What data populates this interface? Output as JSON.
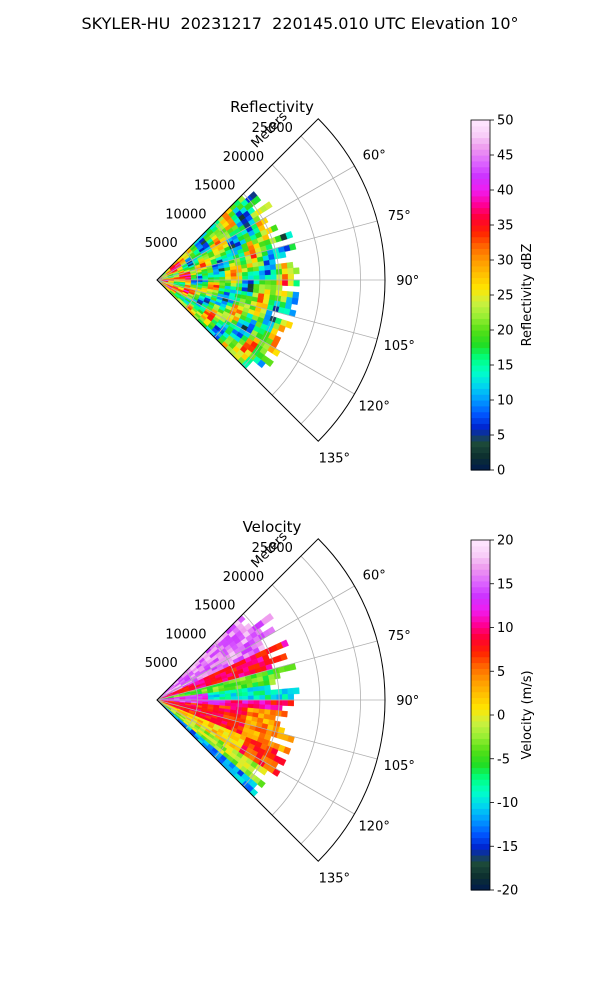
{
  "suptitle": "SKYLER-HU  20231217  220145.010 UTC Elevation 10°",
  "chart_data": [
    {
      "type": "heatmap",
      "projection": "polar sector (PPI)",
      "title": "Reflectivity",
      "range_label": "Meters",
      "range_ticks": [
        5000,
        10000,
        15000,
        20000,
        25000
      ],
      "range_tick_labels": [
        "5000",
        "10000",
        "15000",
        "20000",
        "25000"
      ],
      "rlim": [
        0,
        28000
      ],
      "azimuth_range_deg": [
        45,
        135
      ],
      "azimuth_ticks_deg": [
        60,
        75,
        90,
        105,
        120,
        135
      ],
      "azimuth_tick_labels": [
        "60°",
        "75°",
        "90°",
        "105°",
        "120°",
        "135°"
      ],
      "grid": true,
      "data_extent_m": 17000,
      "colorbar": {
        "label": "Reflectivity dBZ",
        "vmin": 0,
        "vmax": 50,
        "ticks": [
          0,
          5,
          10,
          15,
          20,
          25,
          30,
          35,
          40,
          45,
          50
        ],
        "colors": [
          "#001a4d",
          "#0d3030",
          "#1e4d3a",
          "#0022cc",
          "#0055ff",
          "#0099ff",
          "#00d4f0",
          "#00ffc8",
          "#00ff80",
          "#22dd22",
          "#55e016",
          "#99ee33",
          "#ccf040",
          "#ffe600",
          "#ffc000",
          "#ff9900",
          "#ff6600",
          "#ff2200",
          "#ff0033",
          "#ff0099",
          "#f01cf0",
          "#cc33ff",
          "#dd66ff",
          "#ee99ee",
          "#f8d0f8",
          "#ffe8ff"
        ]
      },
      "dominant_values": "mostly 18–28 dBZ, locally 30–38 dBZ near the radar"
    },
    {
      "type": "heatmap",
      "projection": "polar sector (PPI)",
      "title": "Velocity",
      "range_label": "Meters",
      "range_ticks": [
        5000,
        10000,
        15000,
        20000,
        25000
      ],
      "range_tick_labels": [
        "5000",
        "10000",
        "15000",
        "20000",
        "25000"
      ],
      "rlim": [
        0,
        28000
      ],
      "azimuth_range_deg": [
        45,
        135
      ],
      "azimuth_ticks_deg": [
        60,
        75,
        90,
        105,
        120,
        135
      ],
      "azimuth_tick_labels": [
        "60°",
        "75°",
        "90°",
        "105°",
        "120°",
        "135°"
      ],
      "grid": true,
      "data_extent_m": 17000,
      "colorbar": {
        "label": "Velocity (m/s)",
        "vmin": -20,
        "vmax": 20,
        "ticks": [
          -20,
          -15,
          -10,
          -5,
          0,
          5,
          10,
          15,
          20
        ],
        "colors": [
          "#001a4d",
          "#0d3030",
          "#1e4d3a",
          "#0022cc",
          "#0055ff",
          "#0099ff",
          "#00d4f0",
          "#00ffc8",
          "#00ff80",
          "#22dd22",
          "#55e016",
          "#99ee33",
          "#ccf040",
          "#ffe600",
          "#ffc000",
          "#ff9900",
          "#ff6600",
          "#ff2200",
          "#ff0033",
          "#ff0099",
          "#f01cf0",
          "#cc33ff",
          "#dd66ff",
          "#ee99ee",
          "#f8d0f8",
          "#ffe8ff"
        ]
      },
      "dominant_values": "about +10 to +18 m/s at 60–75°, -10 to -5 m/s near 85–90°, +5 to +12 m/s at 95–115°, 0 to +5 m/s at 120–130°, -12 m/s patch near 135°"
    }
  ]
}
